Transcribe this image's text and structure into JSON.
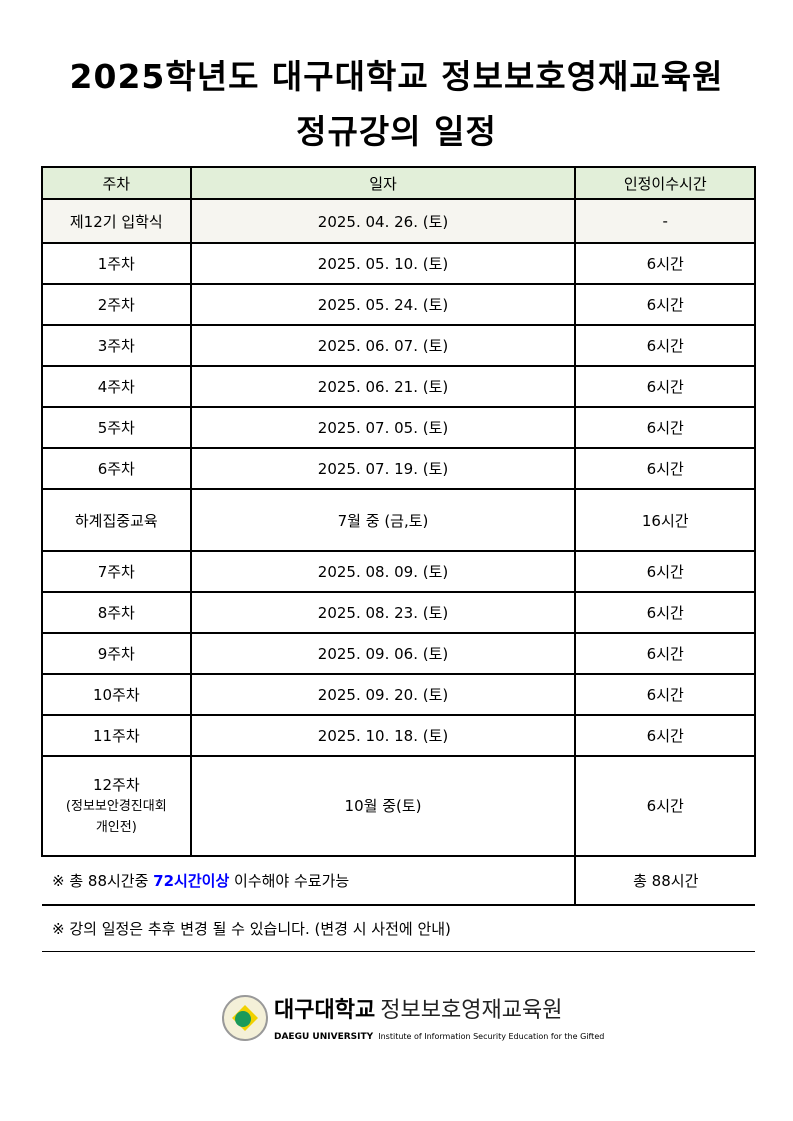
{
  "title": {
    "line1": "2025학년도 대구대학교 정보보호영재교육원",
    "line2": "정규강의 일정"
  },
  "table": {
    "headers": [
      "주차",
      "일자",
      "인정이수시간"
    ],
    "rows": [
      {
        "week": "제12기 입학식",
        "date": "2025. 04. 26. (토)",
        "hours": "-"
      },
      {
        "week": "1주차",
        "date": "2025. 05. 10. (토)",
        "hours": "6시간"
      },
      {
        "week": "2주차",
        "date": "2025. 05. 24. (토)",
        "hours": "6시간"
      },
      {
        "week": "3주차",
        "date": "2025. 06. 07. (토)",
        "hours": "6시간"
      },
      {
        "week": "4주차",
        "date": "2025. 06. 21. (토)",
        "hours": "6시간"
      },
      {
        "week": "5주차",
        "date": "2025. 07. 05. (토)",
        "hours": "6시간"
      },
      {
        "week": "6주차",
        "date": "2025. 07. 19. (토)",
        "hours": "6시간"
      },
      {
        "week": "하계집중교육",
        "date": "7월 중 (금,토)",
        "hours": "16시간"
      },
      {
        "week": "7주차",
        "date": "2025. 08. 09. (토)",
        "hours": "6시간"
      },
      {
        "week": "8주차",
        "date": "2025. 08. 23. (토)",
        "hours": "6시간"
      },
      {
        "week": "9주차",
        "date": "2025. 09. 06. (토)",
        "hours": "6시간"
      },
      {
        "week": "10주차",
        "date": "2025. 09. 20. (토)",
        "hours": "6시간"
      },
      {
        "week": "11주차",
        "date": "2025. 10. 18. (토)",
        "hours": "6시간"
      }
    ],
    "last": {
      "week": "12주차",
      "week_sub1": "(정보보안경진대회",
      "week_sub2": "개인전)",
      "date": "10월 중(토)",
      "hours": "6시간"
    },
    "total": {
      "prefix": "※ 총 88시간중 ",
      "highlight": "72시간이상",
      "suffix": " 이수해야 수료가능",
      "hours": "총 88시간"
    },
    "note": "※ 강의 일정은 추후 변경 될 수 있습니다. (변경 시 사전에 안내)"
  },
  "logo": {
    "name_ko": "대구대학교",
    "dept_ko": "정보보호영재교육원",
    "name_en": "DAEGU UNIVERSITY",
    "dept_en": "Institute of Information Security Education for the Gifted"
  },
  "colors": {
    "header_bg": "#e2efd9",
    "highlight": "#0000ff"
  }
}
